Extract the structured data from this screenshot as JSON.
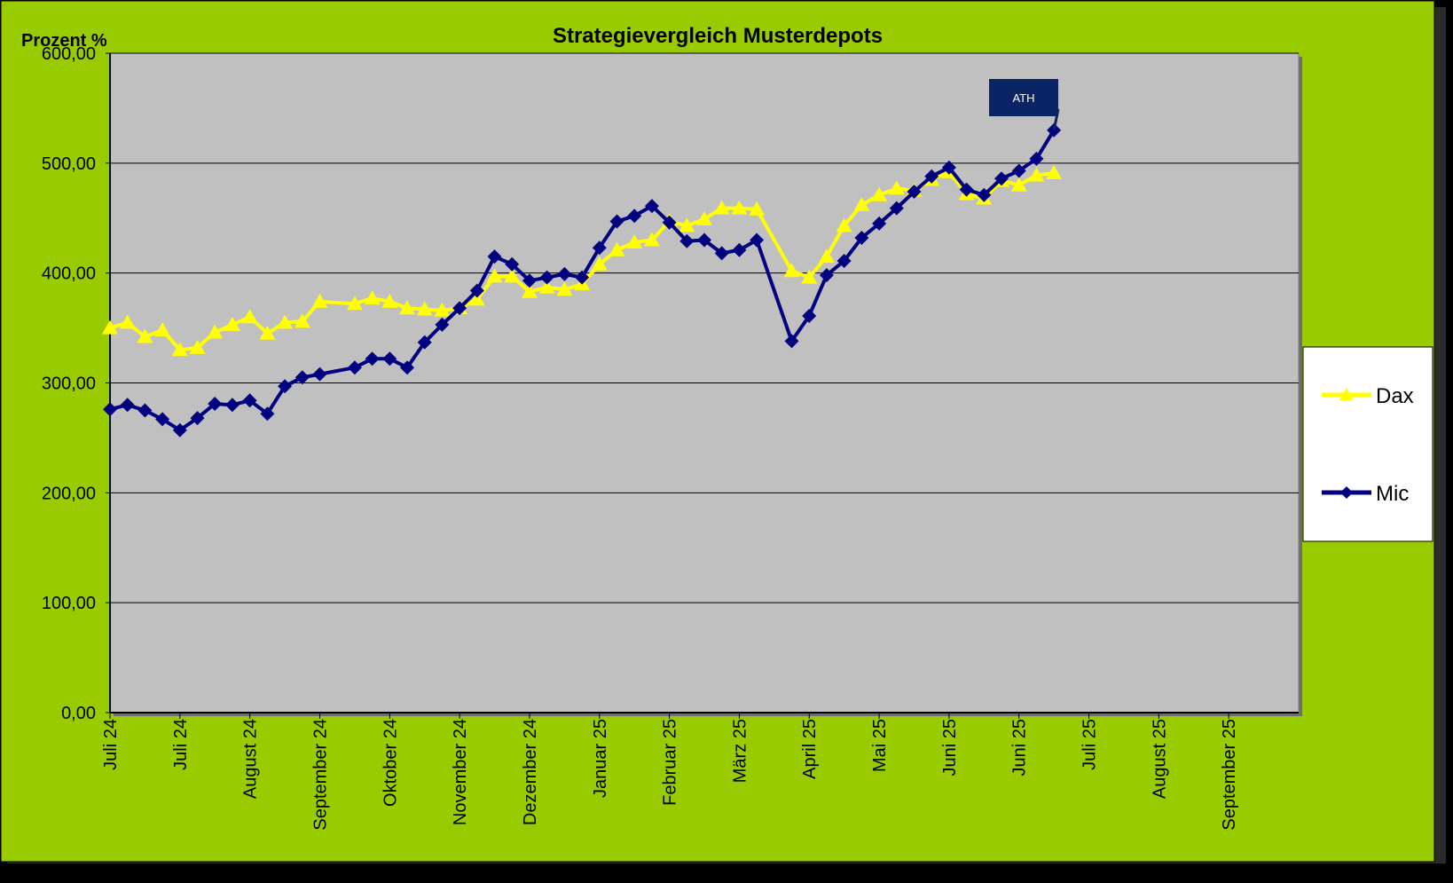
{
  "chart_data": {
    "type": "line",
    "title": "Strategievergleich Musterdepots",
    "ylabel": "Prozent %",
    "xlabel": "",
    "ylim": [
      0,
      600
    ],
    "y_ticks": [
      "0,00",
      "100,00",
      "200,00",
      "300,00",
      "400,00",
      "500,00",
      "600,00"
    ],
    "x_tick_labels": [
      "Juli 24",
      "Juli 24",
      "August 24",
      "September 24",
      "Oktober 24",
      "November 24",
      "Dezember 24",
      "Januar 25",
      "Februar 25",
      "März 25",
      "April 25",
      "Mai 25",
      "Juni 25",
      "Juni 25",
      "Juli 25",
      "August 25",
      "September 25"
    ],
    "grid": "horizontal",
    "legend_position": "right",
    "colors": {
      "frame": "#99CC00",
      "plot_area": "#C0C0C0",
      "dax": "#FFFF00",
      "mic": "#000080",
      "annotation_bg": "#0A2466"
    },
    "series": [
      {
        "name": "Dax",
        "marker": "triangle",
        "points": [
          [
            0,
            350
          ],
          [
            0.25,
            355
          ],
          [
            0.5,
            342
          ],
          [
            0.75,
            348
          ],
          [
            1,
            330
          ],
          [
            1.25,
            332
          ],
          [
            1.5,
            346
          ],
          [
            1.75,
            353
          ],
          [
            2,
            360
          ],
          [
            2.25,
            345
          ],
          [
            2.5,
            355
          ],
          [
            2.75,
            356
          ],
          [
            3,
            374
          ],
          [
            3.5,
            372
          ],
          [
            3.75,
            377
          ],
          [
            4,
            374
          ],
          [
            4.25,
            368
          ],
          [
            4.5,
            367
          ],
          [
            4.75,
            366
          ],
          [
            5,
            368
          ],
          [
            5.25,
            376
          ],
          [
            5.5,
            397
          ],
          [
            5.75,
            397
          ],
          [
            6,
            383
          ],
          [
            6.25,
            387
          ],
          [
            6.5,
            385
          ],
          [
            6.75,
            390
          ],
          [
            7,
            408
          ],
          [
            7.25,
            421
          ],
          [
            7.5,
            428
          ],
          [
            7.75,
            430
          ],
          [
            8,
            447
          ],
          [
            8.25,
            443
          ],
          [
            8.5,
            449
          ],
          [
            8.75,
            459
          ],
          [
            9,
            459
          ],
          [
            9.25,
            458
          ],
          [
            9.75,
            402
          ],
          [
            10,
            396
          ],
          [
            10.25,
            415
          ],
          [
            10.5,
            443
          ],
          [
            10.75,
            462
          ],
          [
            11,
            471
          ],
          [
            11.25,
            477
          ],
          [
            11.5,
            475
          ],
          [
            11.75,
            485
          ],
          [
            12,
            492
          ],
          [
            12.25,
            472
          ],
          [
            12.5,
            468
          ],
          [
            12.75,
            484
          ],
          [
            13,
            480
          ],
          [
            13.25,
            489
          ],
          [
            13.5,
            491
          ]
        ]
      },
      {
        "name": "Mic",
        "marker": "diamond",
        "points": [
          [
            0,
            276
          ],
          [
            0.25,
            280
          ],
          [
            0.5,
            275
          ],
          [
            0.75,
            267
          ],
          [
            1,
            257
          ],
          [
            1.25,
            268
          ],
          [
            1.5,
            281
          ],
          [
            1.75,
            280
          ],
          [
            2,
            284
          ],
          [
            2.25,
            272
          ],
          [
            2.5,
            297
          ],
          [
            2.75,
            305
          ],
          [
            3,
            308
          ],
          [
            3.5,
            314
          ],
          [
            3.75,
            322
          ],
          [
            4,
            322
          ],
          [
            4.25,
            314
          ],
          [
            4.5,
            337
          ],
          [
            4.75,
            353
          ],
          [
            5,
            368
          ],
          [
            5.25,
            384
          ],
          [
            5.5,
            415
          ],
          [
            5.75,
            408
          ],
          [
            6,
            393
          ],
          [
            6.25,
            396
          ],
          [
            6.5,
            399
          ],
          [
            6.75,
            396
          ],
          [
            7,
            423
          ],
          [
            7.25,
            447
          ],
          [
            7.5,
            452
          ],
          [
            7.75,
            461
          ],
          [
            8,
            446
          ],
          [
            8.25,
            429
          ],
          [
            8.5,
            430
          ],
          [
            8.75,
            418
          ],
          [
            9,
            421
          ],
          [
            9.25,
            430
          ],
          [
            9.75,
            338
          ],
          [
            10,
            361
          ],
          [
            10.25,
            398
          ],
          [
            10.5,
            411
          ],
          [
            10.75,
            432
          ],
          [
            11,
            445
          ],
          [
            11.25,
            459
          ],
          [
            11.5,
            474
          ],
          [
            11.75,
            488
          ],
          [
            12,
            496
          ],
          [
            12.25,
            476
          ],
          [
            12.5,
            471
          ],
          [
            12.75,
            486
          ],
          [
            13,
            493
          ],
          [
            13.25,
            504
          ],
          [
            13.5,
            530
          ]
        ]
      }
    ],
    "annotations": [
      {
        "text": "ATH",
        "series": "Mic",
        "x": 13.5,
        "y": 530
      }
    ]
  }
}
